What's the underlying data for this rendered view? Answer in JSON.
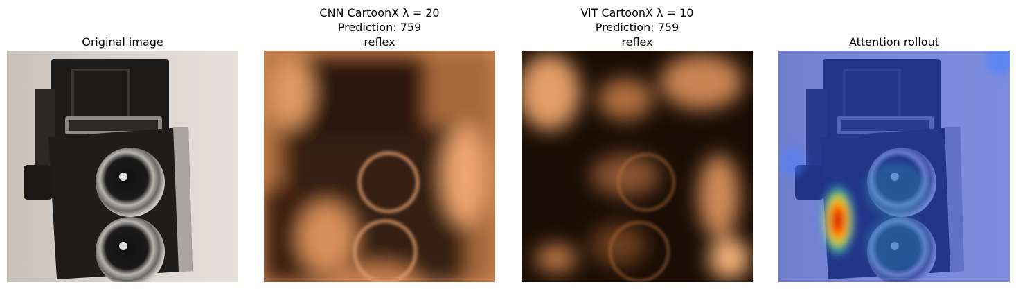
{
  "panels": [
    {
      "title_lines": [
        "Original image"
      ]
    },
    {
      "title_lines": [
        "CNN CartoonX λ = 20",
        "Prediction: 759",
        "reflex"
      ]
    },
    {
      "title_lines": [
        "ViT CartoonX λ = 10",
        "Prediction: 759",
        "reflex"
      ]
    },
    {
      "title_lines": [
        "Attention rollout"
      ]
    }
  ]
}
